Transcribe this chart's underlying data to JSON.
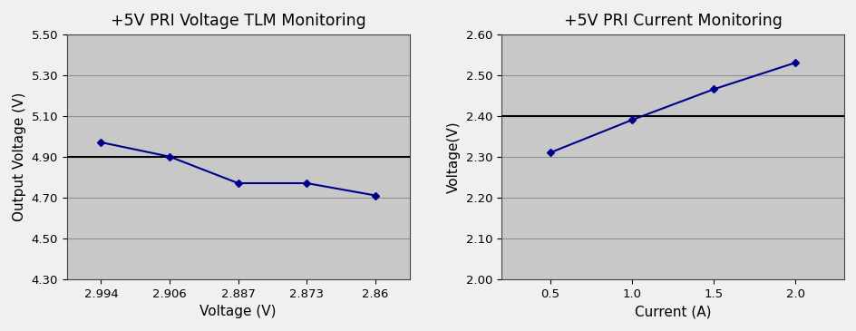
{
  "left": {
    "title": "+5V PRI Voltage TLM Monitoring",
    "x_positions": [
      0,
      1,
      2,
      3,
      4
    ],
    "y": [
      4.97,
      4.9,
      4.77,
      4.77,
      4.71
    ],
    "xlabel": "Voltage (V)",
    "ylabel": "Output Voltage (V)",
    "ylim": [
      4.3,
      5.5
    ],
    "yticks": [
      4.3,
      4.5,
      4.7,
      4.9,
      5.1,
      5.3,
      5.5
    ],
    "xtick_labels": [
      "2.994",
      "2.906",
      "2.887",
      "2.873",
      "2.86"
    ],
    "xlim": [
      -0.5,
      4.5
    ],
    "hline_y": 4.9
  },
  "right": {
    "title": "+5V PRI Current Monitoring",
    "x": [
      0.5,
      1.0,
      1.5,
      2.0
    ],
    "y": [
      2.31,
      2.39,
      2.465,
      2.53
    ],
    "xlabel": "Current (A)",
    "ylabel": "Voltage(V)",
    "ylim": [
      2.0,
      2.6
    ],
    "yticks": [
      2.0,
      2.1,
      2.2,
      2.3,
      2.4,
      2.5,
      2.6
    ],
    "xticks": [
      0.5,
      1.0,
      1.5,
      2.0
    ],
    "xtick_labels": [
      "0.5",
      "1.0",
      "1.5",
      "2.0"
    ],
    "xlim": [
      0.2,
      2.3
    ],
    "hline_y": 2.4
  },
  "line_color": "#00008B",
  "marker": "D",
  "marker_size": 4.5,
  "bg_color": "#C8C8C8",
  "fig_bg_color": "#F0F0F0",
  "title_fontsize": 12.5,
  "label_fontsize": 11,
  "tick_fontsize": 9.5,
  "grid_color": "#909090",
  "grid_linewidth": 0.8,
  "hline_color": "#000000",
  "hline_lw": 1.5
}
